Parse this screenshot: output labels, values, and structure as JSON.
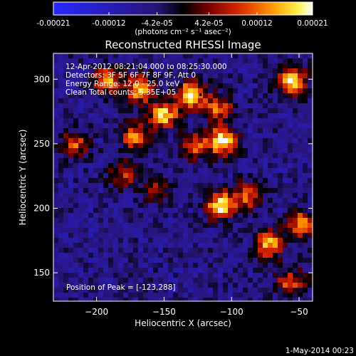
{
  "colorbar": {
    "tick_labels": [
      "-0.00021",
      "-0.00012",
      "-4.2e-05",
      "4.2e-05",
      "0.00012",
      "0.00021"
    ],
    "tick_values": [
      -0.00021,
      -0.00012,
      -4.2e-05,
      4.2e-05,
      0.00012,
      0.00021
    ],
    "range": [
      -0.00021,
      0.00021
    ],
    "units": "(photons cm⁻² s⁻¹ asec⁻²)",
    "colormap": "blue-black-red-yellow-white"
  },
  "chart_data": {
    "type": "heatmap",
    "title": "Reconstructed RHESSI Image",
    "xlabel": "Heliocentric X (arcsec)",
    "ylabel": "Heliocentric Y (arcsec)",
    "xlim": [
      -232,
      -40
    ],
    "ylim": [
      128,
      320
    ],
    "xticks": [
      -200,
      -150,
      -100,
      -50
    ],
    "yticks": [
      150,
      200,
      250,
      300
    ],
    "xtick_labels": [
      "−200",
      "−150",
      "−100",
      "−50"
    ],
    "ytick_labels": [
      "150",
      "200",
      "250",
      "300"
    ],
    "peak_position": [
      -123,
      288
    ],
    "sources": [
      {
        "x": -192,
        "y": 300,
        "level": 0.00014
      },
      {
        "x": -168,
        "y": 292,
        "level": 0.00016
      },
      {
        "x": -130,
        "y": 288,
        "level": 0.0002
      },
      {
        "x": -110,
        "y": 278,
        "level": 0.00011
      },
      {
        "x": -55,
        "y": 298,
        "level": 0.0002
      },
      {
        "x": -150,
        "y": 272,
        "level": 0.00018
      },
      {
        "x": -172,
        "y": 256,
        "level": 0.00012
      },
      {
        "x": -107,
        "y": 252,
        "level": 0.00021
      },
      {
        "x": -128,
        "y": 248,
        "level": 0.0001
      },
      {
        "x": -216,
        "y": 250,
        "level": 0.0001
      },
      {
        "x": -108,
        "y": 202,
        "level": 0.0002
      },
      {
        "x": -88,
        "y": 210,
        "level": 0.00011
      },
      {
        "x": -180,
        "y": 226,
        "level": 7e-05
      },
      {
        "x": -155,
        "y": 215,
        "level": 6e-05
      },
      {
        "x": -72,
        "y": 172,
        "level": 0.00016
      },
      {
        "x": -48,
        "y": 188,
        "level": 0.00013
      },
      {
        "x": -56,
        "y": 142,
        "level": 0.0001
      }
    ],
    "background_level": -6e-05
  },
  "info": {
    "time_range": "12-Apr-2012 08:21:04.000 to 08:25:30.000",
    "detectors": "Detectors: 3F 5F 6F 7F 8F 9F, Att 0",
    "energy": "Energy Range: 12.0 - 25.0 keV",
    "algorithm": "Clean     Total counts: 5.35E+05",
    "peak": "Position of Peak = [-123,288]"
  },
  "timestamp": "1-May-2014 00:23"
}
